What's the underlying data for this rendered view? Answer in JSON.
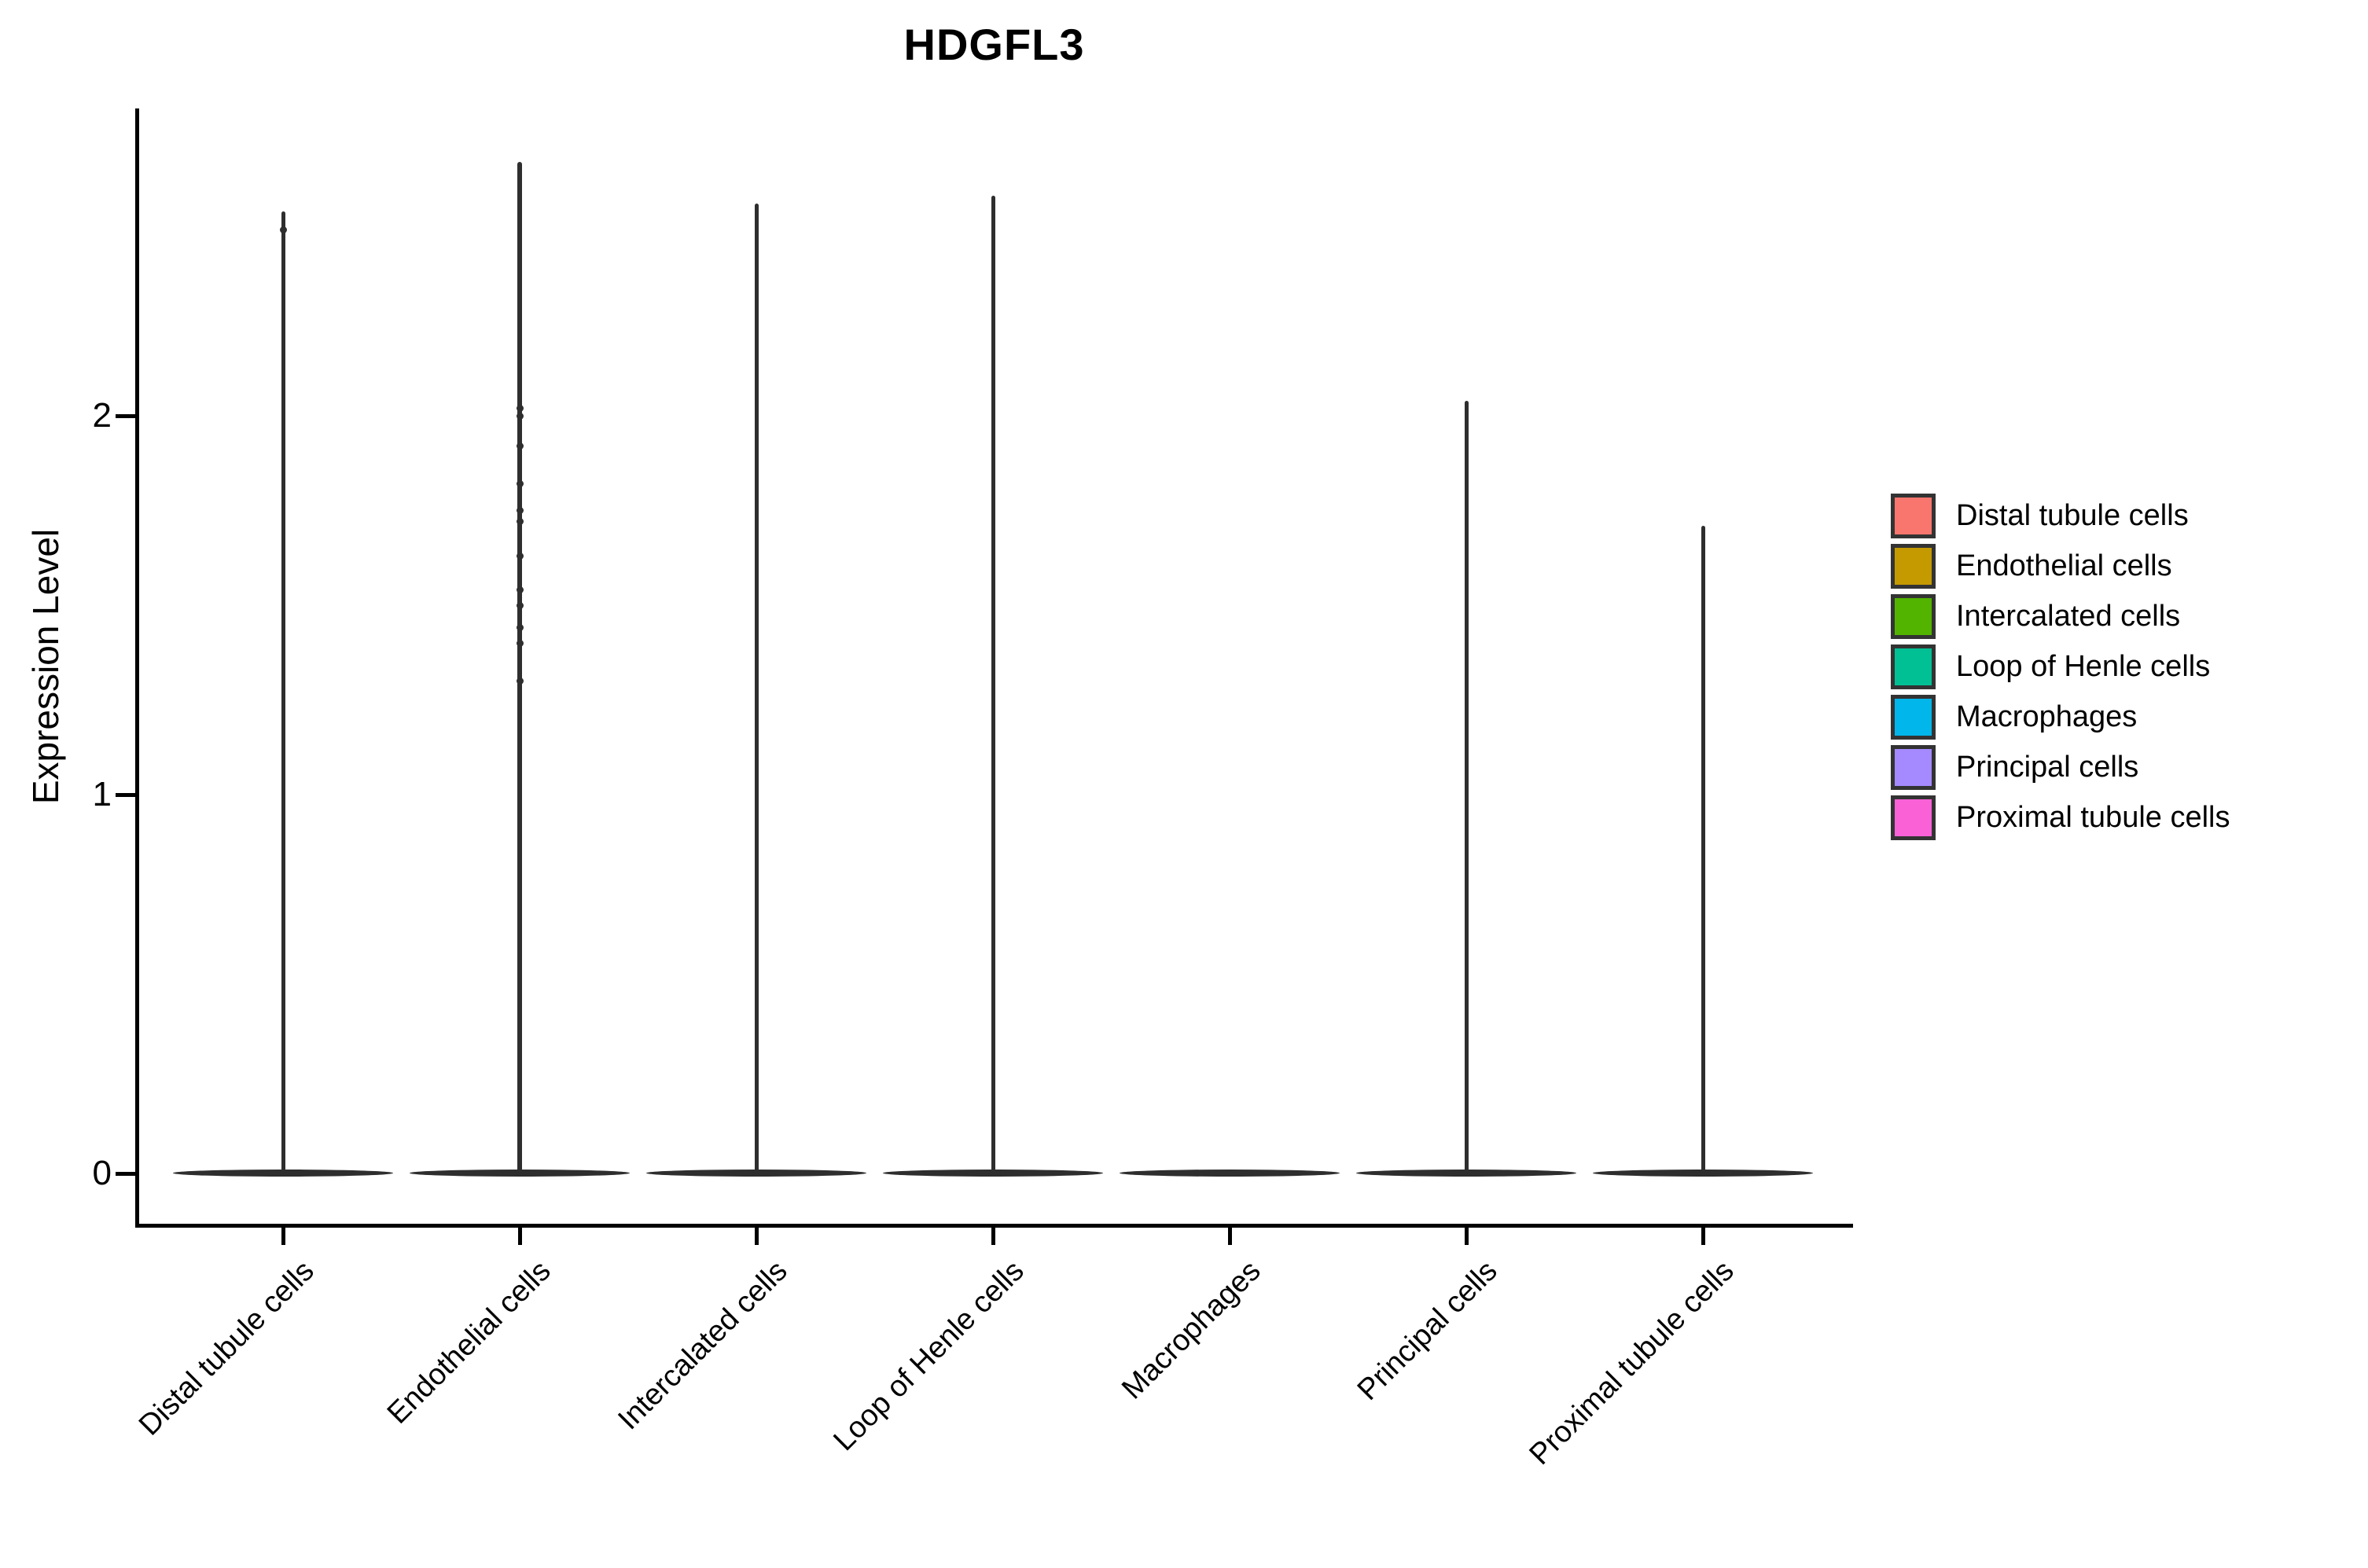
{
  "title": "HDGFL3",
  "y_axis": {
    "label": "Expression Level",
    "tick_labels": [
      "0",
      "1",
      "2"
    ]
  },
  "x_axis": {
    "categories": [
      "Distal tubule cells",
      "Endothelial cells",
      "Intercalated cells",
      "Loop of Henle cells",
      "Macrophages",
      "Principal cells",
      "Proximal tubule cells"
    ]
  },
  "legend": {
    "items": [
      {
        "label": "Distal tubule cells",
        "color": "#F8766D"
      },
      {
        "label": "Endothelial cells",
        "color": "#C49A00"
      },
      {
        "label": "Intercalated cells",
        "color": "#53B400"
      },
      {
        "label": "Loop of Henle cells",
        "color": "#00C094"
      },
      {
        "label": "Macrophages",
        "color": "#00B6EB"
      },
      {
        "label": "Principal cells",
        "color": "#A58AFF"
      },
      {
        "label": "Proximal tubule cells",
        "color": "#FB61D7"
      }
    ]
  },
  "chart_data": {
    "type": "violin",
    "title": "HDGFL3",
    "ylabel": "Expression Level",
    "ylim": [
      0,
      2.8
    ],
    "y_ticks": [
      0,
      1,
      2
    ],
    "grid": false,
    "legend_position": "right",
    "violin_outline_color": "#2e2e2e",
    "categories": [
      "Distal tubule cells",
      "Endothelial cells",
      "Intercalated cells",
      "Loop of Henle cells",
      "Macrophages",
      "Principal cells",
      "Proximal tubule cells"
    ],
    "series": [
      {
        "name": "Distal tubule cells",
        "color": "#F8766D",
        "density_peak_at": 0,
        "max_expression": 2.54,
        "jitter_points": [
          2.49
        ]
      },
      {
        "name": "Endothelial cells",
        "color": "#C49A00",
        "density_peak_at": 0,
        "max_expression": 2.67,
        "jitter_points": [
          2.02,
          2.0,
          1.92,
          1.82,
          1.75,
          1.72,
          1.63,
          1.54,
          1.5,
          1.44,
          1.4,
          1.3
        ]
      },
      {
        "name": "Intercalated cells",
        "color": "#53B400",
        "density_peak_at": 0,
        "max_expression": 2.56,
        "jitter_points": []
      },
      {
        "name": "Loop of Henle cells",
        "color": "#00C094",
        "density_peak_at": 0,
        "max_expression": 2.58,
        "jitter_points": []
      },
      {
        "name": "Macrophages",
        "color": "#00B6EB",
        "density_peak_at": 0,
        "max_expression": 0,
        "jitter_points": []
      },
      {
        "name": "Principal cells",
        "color": "#A58AFF",
        "density_peak_at": 0,
        "max_expression": 2.04,
        "jitter_points": []
      },
      {
        "name": "Proximal tubule cells",
        "color": "#FB61D7",
        "density_peak_at": 0,
        "max_expression": 1.71,
        "jitter_points": []
      }
    ]
  }
}
